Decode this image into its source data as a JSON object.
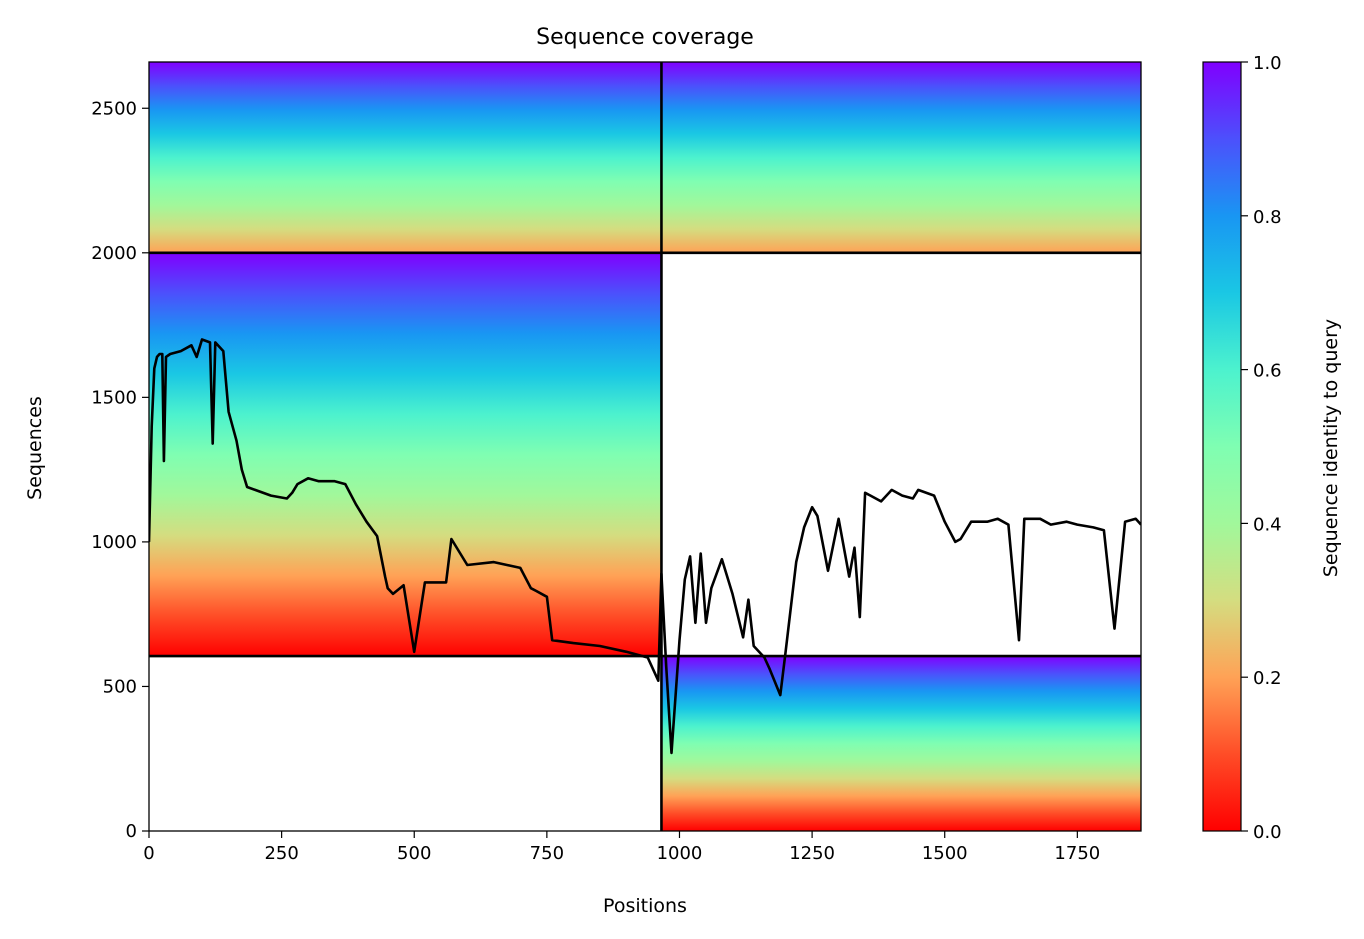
{
  "chart_data": {
    "type": "heatmap",
    "title": "Sequence coverage",
    "xlabel": "Positions",
    "ylabel": "Sequences",
    "xlim": [
      0,
      1870
    ],
    "ylim": [
      0,
      2660
    ],
    "x_ticks": [
      0,
      250,
      500,
      750,
      1000,
      1250,
      1500,
      1750
    ],
    "y_ticks": [
      0,
      500,
      1000,
      1500,
      2000,
      2500
    ],
    "grid": false,
    "colorbar": {
      "label": "Sequence identity to query",
      "colormap": "rainbow",
      "range": [
        0,
        1
      ],
      "ticks": [
        0.0,
        0.2,
        0.4,
        0.6,
        0.8,
        1.0
      ],
      "tick_labels": [
        "0.0",
        "0.2",
        "0.4",
        "0.6",
        "0.8",
        "1.0"
      ]
    },
    "block_boundaries": {
      "x": [
        966
      ],
      "y": [
        605,
        2000
      ]
    },
    "coverage_blocks": [
      {
        "name": "block-top-left",
        "x": [
          0,
          966
        ],
        "y": [
          2000,
          2660
        ],
        "identity_bottom": 0.2,
        "identity_top": 1.0
      },
      {
        "name": "block-top-right",
        "x": [
          966,
          1870
        ],
        "y": [
          2000,
          2660
        ],
        "identity_bottom": 0.2,
        "identity_top": 1.0
      },
      {
        "name": "block-middle-left",
        "x": [
          0,
          966
        ],
        "y": [
          605,
          2000
        ],
        "identity_bottom": 0.0,
        "identity_top": 1.0
      },
      {
        "name": "block-bottom-right",
        "x": [
          966,
          1870
        ],
        "y": [
          0,
          605
        ],
        "identity_bottom": 0.0,
        "identity_top": 1.0
      }
    ],
    "line_series": {
      "color": "#000000",
      "x": [
        0,
        5,
        10,
        15,
        20,
        25,
        28,
        32,
        40,
        60,
        80,
        90,
        100,
        115,
        120,
        125,
        140,
        150,
        165,
        175,
        185,
        200,
        230,
        260,
        270,
        280,
        300,
        320,
        350,
        370,
        390,
        410,
        430,
        445,
        450,
        460,
        480,
        500,
        520,
        540,
        560,
        570,
        600,
        650,
        700,
        720,
        730,
        750,
        760,
        800,
        850,
        900,
        940,
        960,
        966,
        975,
        985,
        1000,
        1010,
        1020,
        1030,
        1040,
        1050,
        1060,
        1080,
        1100,
        1120,
        1130,
        1140,
        1160,
        1170,
        1190,
        1200,
        1220,
        1235,
        1250,
        1260,
        1280,
        1300,
        1320,
        1330,
        1340,
        1350,
        1360,
        1380,
        1400,
        1420,
        1440,
        1450,
        1480,
        1500,
        1520,
        1530,
        1550,
        1580,
        1600,
        1620,
        1640,
        1650,
        1680,
        1700,
        1730,
        1750,
        1780,
        1800,
        1820,
        1840,
        1860,
        1870
      ],
      "y": [
        1000,
        1400,
        1600,
        1640,
        1650,
        1650,
        1280,
        1640,
        1650,
        1660,
        1680,
        1640,
        1700,
        1690,
        1340,
        1690,
        1660,
        1450,
        1350,
        1250,
        1190,
        1180,
        1160,
        1150,
        1170,
        1200,
        1220,
        1210,
        1210,
        1200,
        1130,
        1070,
        1020,
        880,
        840,
        820,
        850,
        620,
        860,
        860,
        860,
        1010,
        920,
        930,
        910,
        840,
        830,
        810,
        660,
        650,
        640,
        620,
        600,
        520,
        890,
        570,
        270,
        660,
        870,
        950,
        720,
        960,
        720,
        840,
        940,
        820,
        670,
        800,
        640,
        600,
        560,
        470,
        620,
        930,
        1050,
        1120,
        1090,
        900,
        1080,
        880,
        980,
        740,
        1170,
        1160,
        1140,
        1180,
        1160,
        1150,
        1180,
        1160,
        1070,
        1000,
        1010,
        1070,
        1070,
        1080,
        1060,
        660,
        1080,
        1080,
        1060,
        1070,
        1060,
        1050,
        1040,
        700,
        1070,
        1080,
        1060
      ]
    }
  }
}
